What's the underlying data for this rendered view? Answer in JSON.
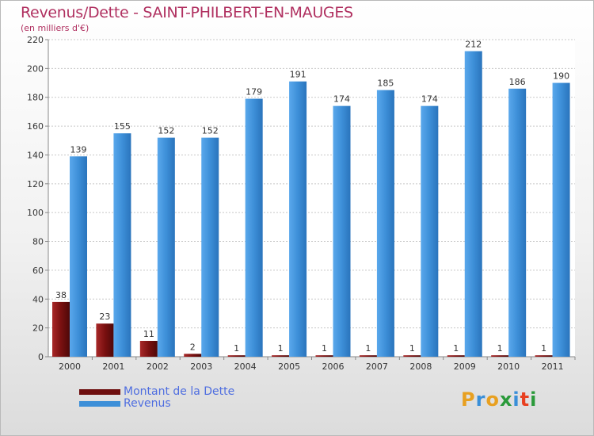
{
  "header": {
    "title": "Revenus/Dette - SAINT-PHILBERT-EN-MAUGES",
    "subtitle": "(en milliers d'€)"
  },
  "chart_data": {
    "type": "bar",
    "categories": [
      "2000",
      "2001",
      "2002",
      "2003",
      "2004",
      "2005",
      "2006",
      "2007",
      "2008",
      "2009",
      "2010",
      "2011"
    ],
    "series": [
      {
        "name": "Montant de la Dette",
        "values": [
          38,
          23,
          11,
          2,
          1,
          1,
          1,
          1,
          1,
          1,
          1,
          1
        ],
        "color": "#7a1010"
      },
      {
        "name": "Revenus",
        "values": [
          139,
          155,
          152,
          152,
          179,
          191,
          174,
          185,
          174,
          212,
          186,
          190
        ],
        "color": "#3d8fd8"
      }
    ],
    "y_ticks": [
      "0",
      "20",
      "40",
      "60",
      "80",
      "100",
      "120",
      "140",
      "160",
      "180",
      "200",
      "220"
    ],
    "ylim": [
      0,
      220
    ],
    "grid": true,
    "legend_position": "bottom-left"
  },
  "legend": {
    "items": [
      {
        "label": "Montant de la Dette",
        "color": "#6e0f0f"
      },
      {
        "label": "Revenus",
        "color": "#3d8fd8"
      }
    ]
  },
  "logo": {
    "letters": [
      "P",
      "r",
      "o",
      "x",
      "i",
      "t",
      "i"
    ],
    "colors": [
      "#e8a020",
      "#3a8fd8",
      "#e8a020",
      "#2a9a3a",
      "#3a8fd8",
      "#e84020",
      "#2a9a3a"
    ]
  }
}
